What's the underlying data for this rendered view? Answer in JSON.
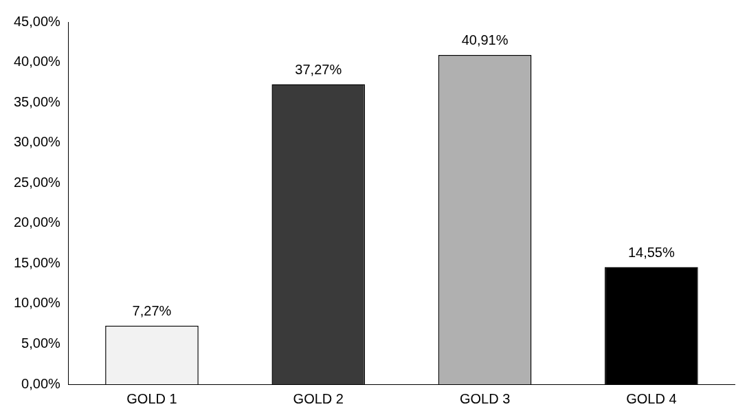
{
  "chart_data": {
    "type": "bar",
    "categories": [
      "GOLD 1",
      "GOLD 2",
      "GOLD 3",
      "GOLD 4"
    ],
    "values": [
      7.27,
      37.27,
      40.91,
      14.55
    ],
    "colors": [
      "#f2f2f2",
      "#3a3a3a",
      "#b0b0b0",
      "#000000"
    ],
    "value_labels": [
      "7,27%",
      "37,27%",
      "40,91%",
      "14,55%"
    ],
    "ylim": [
      0,
      45
    ],
    "yticks": [
      {
        "value": 0,
        "label": "0,00%"
      },
      {
        "value": 5,
        "label": "5,00%"
      },
      {
        "value": 10,
        "label": "10,00%"
      },
      {
        "value": 15,
        "label": "15,00%"
      },
      {
        "value": 20,
        "label": "20,00%"
      },
      {
        "value": 25,
        "label": "25,00%"
      },
      {
        "value": 30,
        "label": "30,00%"
      },
      {
        "value": 35,
        "label": "35,00%"
      },
      {
        "value": 40,
        "label": "40,00%"
      },
      {
        "value": 45,
        "label": "45,00%"
      }
    ],
    "grid": false,
    "legend": false
  }
}
